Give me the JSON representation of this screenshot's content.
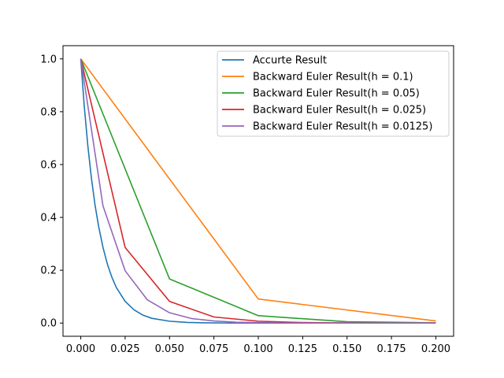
{
  "chart_data": {
    "type": "line",
    "title": "",
    "xlabel": "",
    "ylabel": "",
    "xlim": [
      -0.01,
      0.21
    ],
    "ylim": [
      -0.05,
      1.05
    ],
    "grid": false,
    "legend_placement": "top-right",
    "x_ticks": [
      "0.000",
      "0.025",
      "0.050",
      "0.075",
      "0.100",
      "0.125",
      "0.150",
      "0.175",
      "0.200"
    ],
    "y_ticks": [
      "0.0",
      "0.2",
      "0.4",
      "0.6",
      "0.8",
      "1.0"
    ],
    "x_tick_values": [
      0,
      0.025,
      0.05,
      0.075,
      0.1,
      0.125,
      0.15,
      0.175,
      0.2
    ],
    "y_tick_values": [
      0,
      0.2,
      0.4,
      0.6,
      0.8,
      1.0
    ],
    "series": [
      {
        "name": "Accurte Result",
        "color": "#1f77b4",
        "x": [
          0,
          0.002,
          0.004,
          0.006,
          0.008,
          0.01,
          0.0125,
          0.015,
          0.0175,
          0.02,
          0.025,
          0.03,
          0.035,
          0.04,
          0.05,
          0.06,
          0.07,
          0.08,
          0.1,
          0.12,
          0.14,
          0.16,
          0.18,
          0.2
        ],
        "y": [
          1,
          0.819,
          0.67,
          0.549,
          0.449,
          0.368,
          0.287,
          0.223,
          0.174,
          0.135,
          0.082,
          0.05,
          0.03,
          0.018,
          0.007,
          0.0025,
          0.0009,
          0.0003,
          5e-05,
          1e-05,
          0,
          0,
          0,
          0
        ]
      },
      {
        "name": "Backward Euler Result(h = 0.1)",
        "color": "#ff7f0e",
        "x": [
          0,
          0.1,
          0.2
        ],
        "y": [
          1,
          0.091,
          0.008
        ]
      },
      {
        "name": "Backward Euler Result(h = 0.05)",
        "color": "#2ca02c",
        "x": [
          0,
          0.05,
          0.1,
          0.15,
          0.2
        ],
        "y": [
          1,
          0.167,
          0.028,
          0.005,
          0.001
        ]
      },
      {
        "name": "Backward Euler Result(h = 0.025)",
        "color": "#d62728",
        "x": [
          0,
          0.025,
          0.05,
          0.075,
          0.1,
          0.125,
          0.15,
          0.175,
          0.2
        ],
        "y": [
          1,
          0.286,
          0.082,
          0.023,
          0.007,
          0.002,
          0.0006,
          0.0002,
          5e-05
        ]
      },
      {
        "name": "Backward Euler Result(h = 0.0125)",
        "color": "#9467bd",
        "x": [
          0,
          0.0125,
          0.025,
          0.0375,
          0.05,
          0.0625,
          0.075,
          0.0875,
          0.1,
          0.1125,
          0.125,
          0.1375,
          0.15,
          0.1625,
          0.175,
          0.1875,
          0.2
        ],
        "y": [
          1,
          0.444,
          0.198,
          0.088,
          0.039,
          0.017,
          0.008,
          0.003,
          0.0015,
          0.0007,
          0.0003,
          0.0001,
          0,
          0,
          0,
          0,
          0
        ]
      }
    ]
  }
}
